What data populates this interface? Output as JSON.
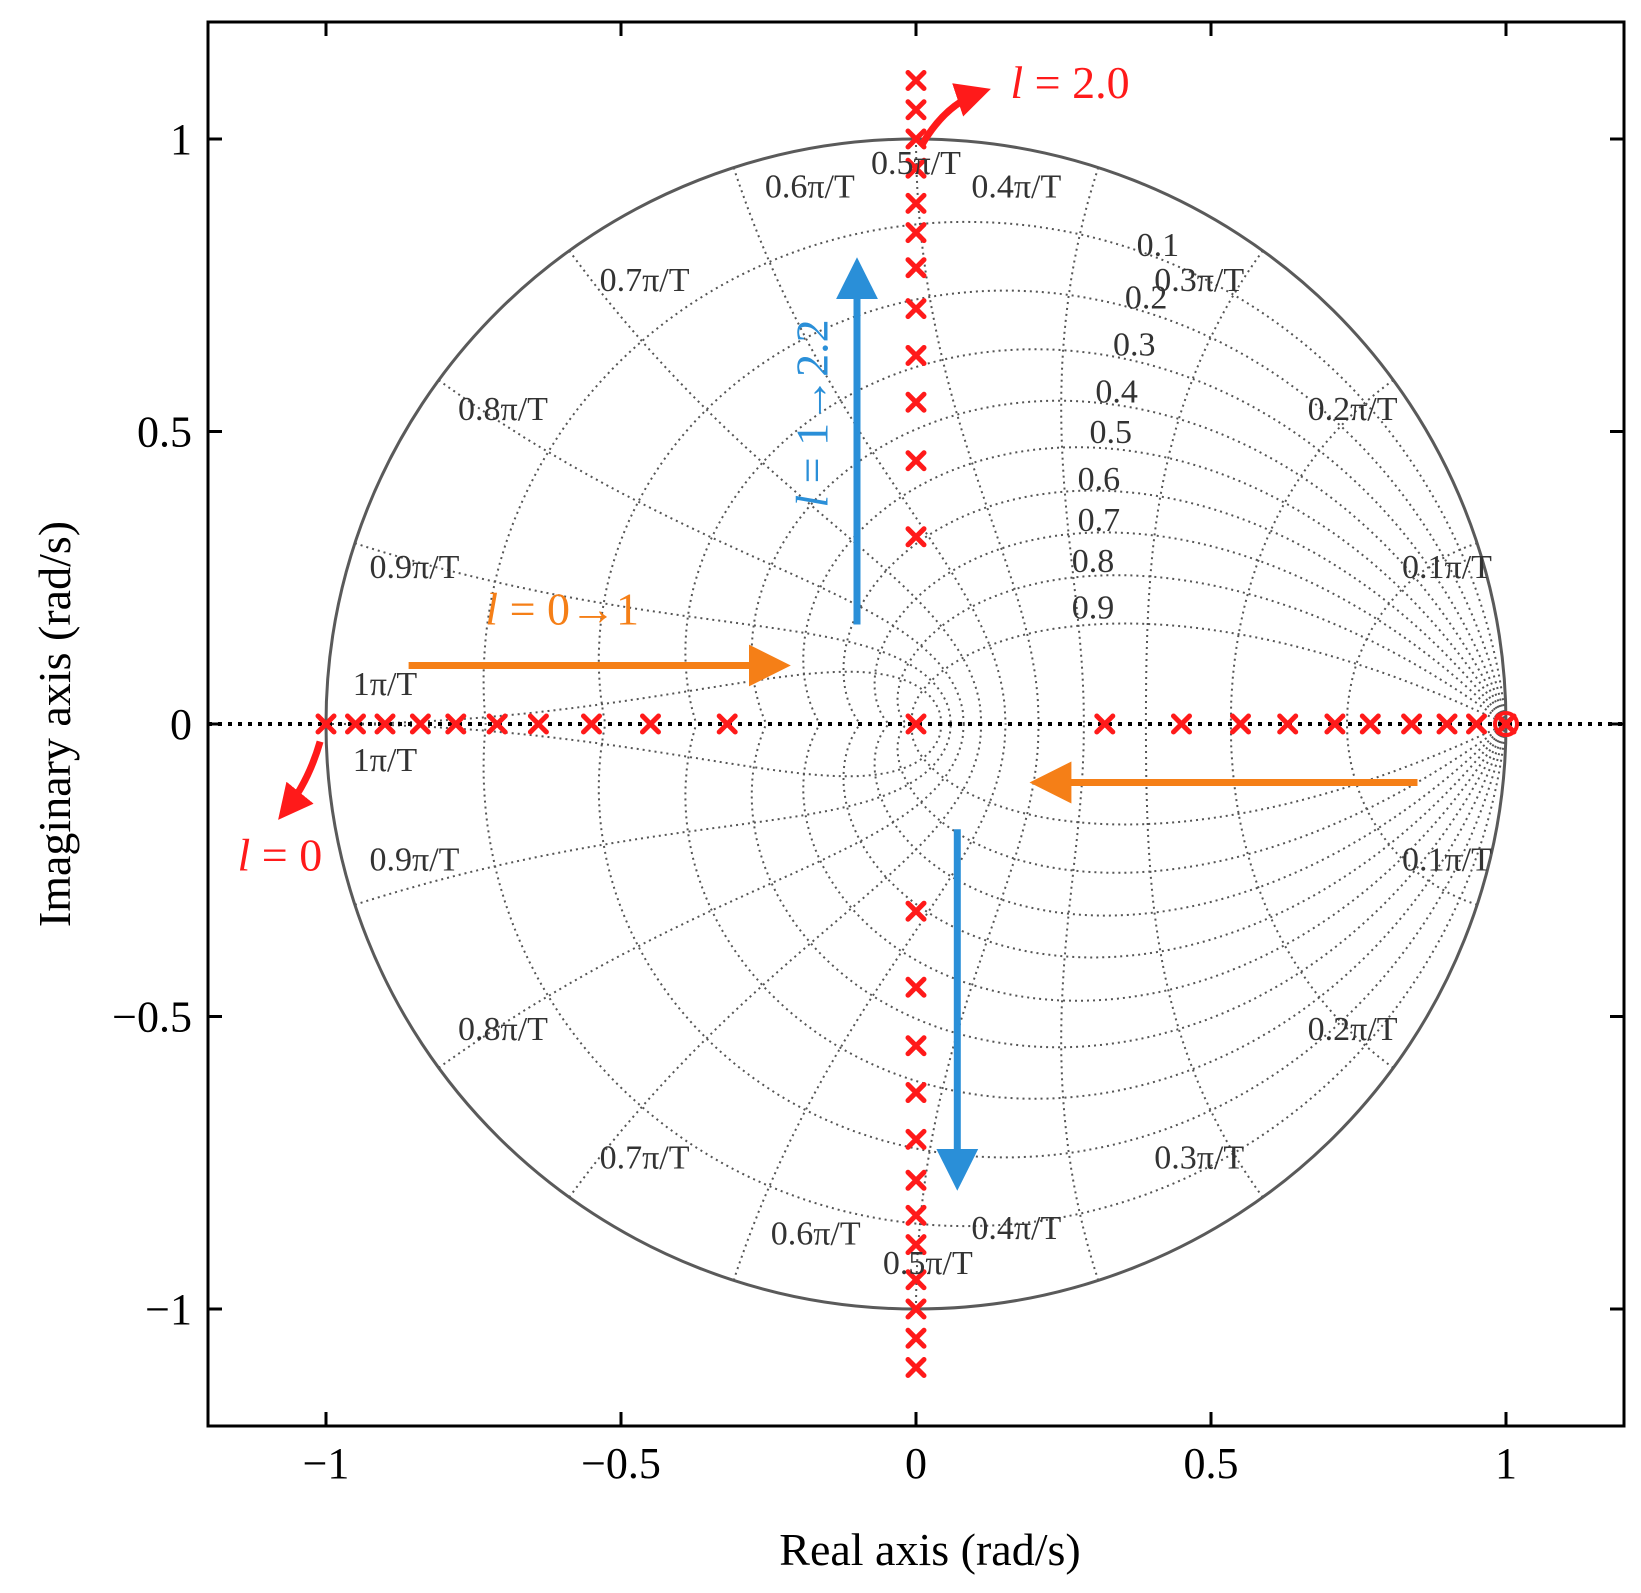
{
  "chart_data": {
    "type": "scatter",
    "xlabel": "Real axis (rad/s)",
    "ylabel": "Imaginary axis (rad/s)",
    "xlim": [
      -1.2,
      1.2
    ],
    "ylim": [
      -1.2,
      1.2
    ],
    "xticks": [
      -1,
      -0.5,
      0,
      0.5,
      1
    ],
    "xtick_labels": [
      "−1",
      "−0.5",
      "0",
      "0.5",
      "1"
    ],
    "yticks": [
      -1,
      -0.5,
      0,
      0.5,
      1
    ],
    "ytick_labels": [
      "−1",
      "−0.5",
      "0",
      "0.5",
      "1"
    ],
    "grid": "z-plane damping and natural frequency grid",
    "damping_values": [
      0.1,
      0.2,
      0.3,
      0.4,
      0.5,
      0.6,
      0.7,
      0.8,
      0.9
    ],
    "damping_labels": [
      "0.1",
      "0.2",
      "0.3",
      "0.4",
      "0.5",
      "0.6",
      "0.7",
      "0.8",
      "0.9"
    ],
    "frequency_values": [
      0.1,
      0.2,
      0.3,
      0.4,
      0.5,
      0.6,
      0.7,
      0.8,
      0.9,
      1.0
    ],
    "frequency_labels": [
      "0.1π/T",
      "0.2π/T",
      "0.3π/T",
      "0.4π/T",
      "0.5π/T",
      "0.6π/T",
      "0.7π/T",
      "0.8π/T",
      "0.9π/T",
      "1π/T"
    ],
    "poles": {
      "marker": "x",
      "color": "#ff1a1a",
      "real_axis_x": [
        -1.0,
        -0.95,
        -0.9,
        -0.84,
        -0.78,
        -0.71,
        -0.64,
        -0.55,
        -0.45,
        -0.32,
        0.0,
        0.32,
        0.45,
        0.55,
        0.63,
        0.71,
        0.77,
        0.84,
        0.9,
        0.95,
        1.0
      ],
      "imag_axis_y": [
        1.1,
        1.05,
        1.0,
        0.95,
        0.89,
        0.84,
        0.78,
        0.71,
        0.63,
        0.55,
        0.45,
        0.32,
        -0.32,
        -0.45,
        -0.55,
        -0.63,
        -0.71,
        -0.78,
        -0.84,
        -0.89,
        -0.95,
        -1.0,
        -1.05,
        -1.1
      ]
    },
    "zero": {
      "x": 1.0,
      "y": 0.0,
      "color": "#ff1a1a"
    },
    "annotations": [
      {
        "id": "l2",
        "text_italic": "l",
        "text_rest": " = 2.0",
        "color": "#ff1a1a"
      },
      {
        "id": "l0",
        "text_italic": "l",
        "text_rest": " = 0",
        "color": "#ff1a1a"
      },
      {
        "id": "l01",
        "text_italic": "l",
        "text_rest": " = 0→1",
        "color": "#f57f17"
      },
      {
        "id": "l122",
        "text_italic": "l",
        "text_rest": " = 1→2.2",
        "color": "#2a8fd8"
      }
    ],
    "colors": {
      "frame": "#000000",
      "grid": "#555555",
      "orange": "#f57f17",
      "blue": "#2a8fd8",
      "red": "#ff1a1a"
    }
  }
}
